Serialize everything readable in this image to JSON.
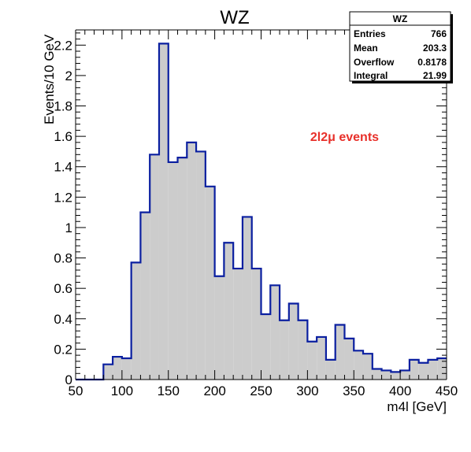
{
  "chart_data": {
    "type": "bar",
    "title": "WZ",
    "xlabel": "m4l [GeV]",
    "ylabel": "Events/10 GeV",
    "xlim": [
      50,
      450
    ],
    "ylim": [
      0,
      2.3
    ],
    "bin_width": 10,
    "bin_edges_start": [
      50,
      60,
      70,
      80,
      90,
      100,
      110,
      120,
      130,
      140,
      150,
      160,
      170,
      180,
      190,
      200,
      210,
      220,
      230,
      240,
      250,
      260,
      270,
      280,
      290,
      300,
      310,
      320,
      330,
      340,
      350,
      360,
      370,
      380,
      390,
      400,
      410,
      420,
      430,
      440
    ],
    "values": [
      0,
      0,
      0,
      0.1,
      0.15,
      0.14,
      0.77,
      1.1,
      1.48,
      2.21,
      1.43,
      1.46,
      1.56,
      1.5,
      1.27,
      0.68,
      0.9,
      0.73,
      1.07,
      0.73,
      0.43,
      0.62,
      0.39,
      0.5,
      0.39,
      0.25,
      0.28,
      0.13,
      0.36,
      0.27,
      0.19,
      0.17,
      0.07,
      0.06,
      0.05,
      0.06,
      0.13,
      0.11,
      0.13,
      0.14
    ],
    "x_ticks": [
      "50",
      "100",
      "150",
      "200",
      "250",
      "300",
      "350",
      "400",
      "450"
    ],
    "x_tick_values": [
      50,
      100,
      150,
      200,
      250,
      300,
      350,
      400,
      450
    ],
    "y_ticks": [
      "0",
      "0.2",
      "0.4",
      "0.6",
      "0.8",
      "1",
      "1.2",
      "1.4",
      "1.6",
      "1.8",
      "2",
      "2.2"
    ],
    "y_tick_values": [
      0,
      0.2,
      0.4,
      0.6,
      0.8,
      1,
      1.2,
      1.4,
      1.6,
      1.8,
      2,
      2.2
    ],
    "annotation": "2l2μ events",
    "annotation_x": 340,
    "annotation_y": 1.57,
    "fill_color": "#cccccc",
    "line_color": "#0a1fa0",
    "annotation_color": "#e8302a",
    "stats_box": {
      "title": "WZ",
      "rows": [
        {
          "label": "Entries",
          "value": "766"
        },
        {
          "label": "Mean",
          "value": "203.3"
        },
        {
          "label": "Overflow",
          "value": "0.8178"
        },
        {
          "label": "Integral",
          "value": "21.99"
        }
      ]
    }
  }
}
